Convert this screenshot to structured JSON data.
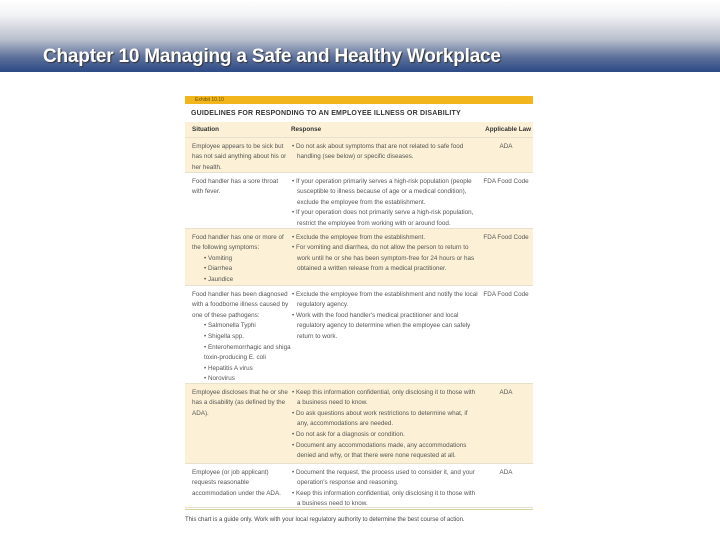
{
  "slide_title": "Chapter 10 Managing a Safe and Healthy Workplace",
  "exhibit": {
    "label": "Exhibit 10.10",
    "title": "GUIDELINES FOR RESPONDING TO AN EMPLOYEE ILLNESS OR DISABILITY",
    "headers": {
      "situation": "Situation",
      "response": "Response",
      "law": "Applicable Law"
    },
    "rows": [
      {
        "situation": "Employee appears to be sick but has not said anything about his or her health.",
        "items": [],
        "responses": [
          "Do not ask about symptoms that are not related to safe food handling (see below) or specific diseases."
        ],
        "law": "ADA"
      },
      {
        "situation": "Food handler has a sore throat with fever.",
        "items": [],
        "responses": [
          "If your operation primarily serves a high-risk population (people susceptible to illness because of age or a medical condition), exclude the employee from the establishment.",
          "If your operation does not primarily serve a high-risk population, restrict the employee from working with or around food."
        ],
        "law": "FDA Food Code"
      },
      {
        "situation": "Food handler has one or more of the following symptoms:",
        "items": [
          "Vomiting",
          "Diarrhea",
          "Jaundice"
        ],
        "responses": [
          "Exclude the employee from the establishment.",
          "For vomiting and diarrhea, do not allow the person to return to work until he or she has been symptom-free for 24 hours or has obtained a written release from a medical practitioner."
        ],
        "law": "FDA Food Code"
      },
      {
        "situation": "Food handler has been diagnosed with a foodborne illness caused by one of these pathogens:",
        "items": [
          "Salmonella Typhi",
          "Shigella spp.",
          "Enterohemorrhagic and shiga toxin-producing E. coli",
          "Hepatitis A virus",
          "Norovirus"
        ],
        "responses": [
          "Exclude the employee from the establishment and notify the local regulatory agency.",
          "Work with the food handler's medical practitioner and local regulatory agency to determine when the employee can safely return to work."
        ],
        "law": "FDA Food Code"
      },
      {
        "situation": "Employee discloses that he or she has a disability (as defined by the ADA).",
        "items": [],
        "responses": [
          "Keep this information confidential, only disclosing it to those with a business need to know.",
          "Do ask questions about work restrictions to determine what, if any, accommodations are needed.",
          "Do not ask for a diagnosis or condition.",
          "Document any accommodations made, any accommodations denied and why, or that there were none requested at all."
        ],
        "law": "ADA"
      },
      {
        "situation": "Employee (or job applicant) requests reasonable accommodation under the ADA.",
        "items": [],
        "responses": [
          "Document the request, the process used to consider it, and your operation's response and reasoning.",
          "Keep this information confidential, only disclosing it to those with a business need to know."
        ],
        "law": "ADA"
      }
    ],
    "footnote": "This chart is a guide only. Work with your local regulatory authority to determine the best course of action."
  }
}
